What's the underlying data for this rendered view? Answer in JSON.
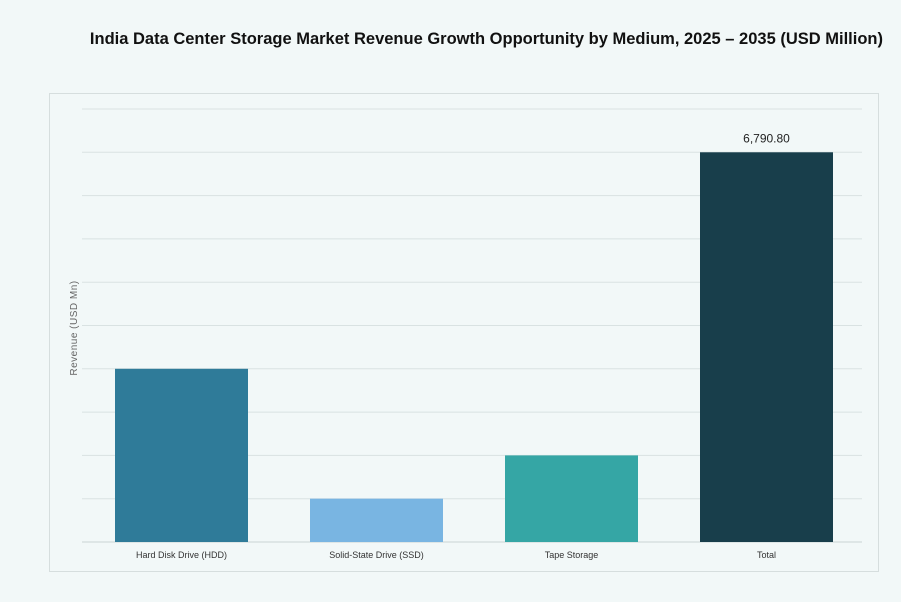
{
  "chart_data": {
    "type": "bar",
    "title": "India Data Center Storage Market Revenue Growth Opportunity by Medium, 2025 – 2035 (USD Million)",
    "xlabel": "",
    "ylabel": "Revenue (USD Mn)",
    "categories": [
      "Hard Disk Drive (HDD)",
      "Solid-State Drive (SSD)",
      "Tape Storage",
      "Total"
    ],
    "values": [
      3018,
      755,
      1509,
      6790.8
    ],
    "data_labels": [
      "",
      "",
      "",
      "6,790.80"
    ],
    "colors": [
      "#2f7b99",
      "#79b5e2",
      "#35a6a5",
      "#183e4b"
    ],
    "ylim": [
      0,
      7545
    ],
    "grid": true,
    "y_tick_labels_shown": false
  }
}
